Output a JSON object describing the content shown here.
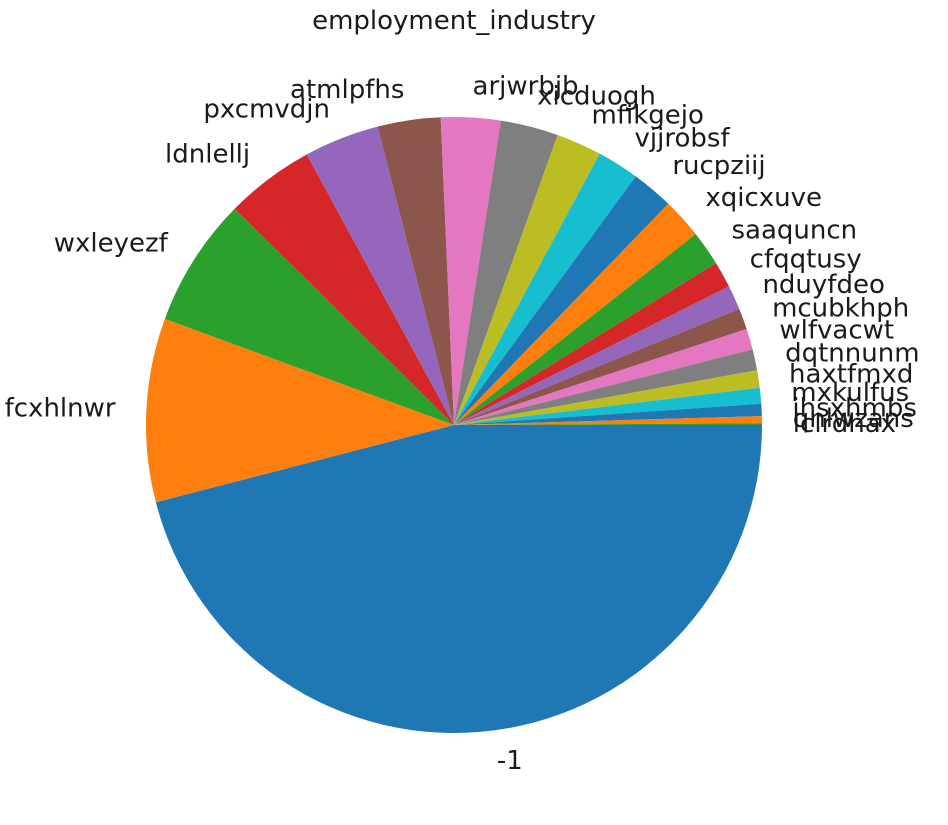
{
  "chart_data": {
    "type": "pie",
    "title": "employment_industry",
    "start_angle_deg": 0,
    "direction": "clockwise",
    "labels": [
      "-1",
      "fcxhlnwr",
      "wxleyezf",
      "ldnlellj",
      "pxcmvdjn",
      "atmlpfhs",
      "arjwrbjb",
      "xicduogh",
      "mfikgejo",
      "vjjrobsf",
      "rucpziij",
      "xqicxuve",
      "saaquncn",
      "cfqqtusy",
      "nduyfdeo",
      "mcubkhph",
      "wlfvacwt",
      "dqtnnunm",
      "haxtfmxd",
      "mxkulfus",
      "ihsxhmbs",
      "qnlwzans",
      "lclrdhax"
    ],
    "values": [
      50.1,
      10.5,
      7.4,
      5.1,
      4.3,
      3.6,
      3.4,
      3.3,
      2.6,
      2.4,
      2.4,
      2.3,
      2.0,
      1.5,
      1.4,
      1.2,
      1.2,
      1.2,
      1.0,
      0.9,
      0.7,
      0.4,
      0.1
    ],
    "colors": [
      "#1f77b4",
      "#ff7f0e",
      "#2ca02c",
      "#d62728",
      "#9467bd",
      "#8c564b",
      "#e377c2",
      "#7f7f7f",
      "#bcbd22",
      "#17becf",
      "#1f77b4",
      "#ff7f0e",
      "#2ca02c",
      "#d62728",
      "#9467bd",
      "#8c564b",
      "#e377c2",
      "#7f7f7f",
      "#bcbd22",
      "#17becf",
      "#1f77b4",
      "#ff7f0e",
      "#2ca02c"
    ]
  }
}
